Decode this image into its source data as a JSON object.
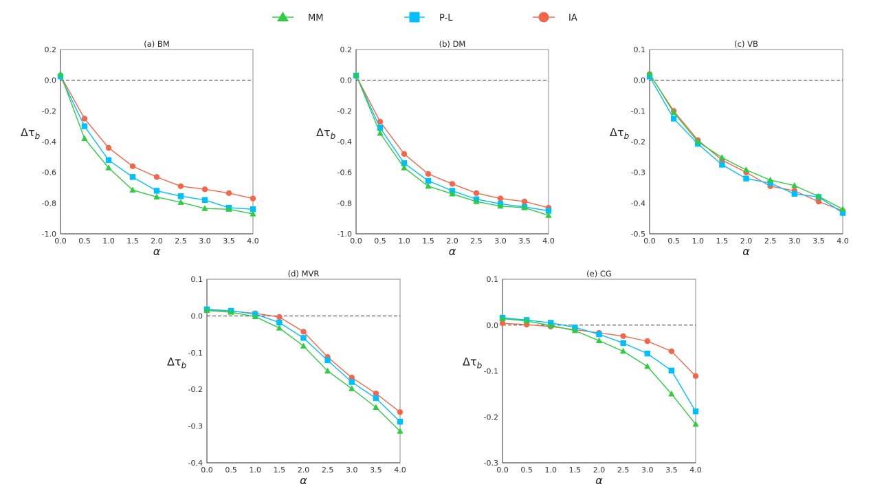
{
  "legend": {
    "position": "top-center",
    "entries": [
      {
        "name": "MM",
        "marker": "triangle",
        "color": "#2ecc40"
      },
      {
        "name": "P-L",
        "marker": "square",
        "color": "#00bfff"
      },
      {
        "name": "IA",
        "marker": "circle",
        "color": "#f4664a"
      }
    ]
  },
  "chart_data": [
    {
      "type": "line",
      "title": "(a) BM",
      "xlabel": "α",
      "ylabel": "Δτ_b",
      "x": [
        0.0,
        0.5,
        1.0,
        1.5,
        2.0,
        2.5,
        3.0,
        3.5,
        4.0
      ],
      "xlim": [
        0.0,
        4.0
      ],
      "ylim": [
        -1.0,
        0.2
      ],
      "xticks": [
        "0.0",
        "0.5",
        "1.0",
        "1.5",
        "2.0",
        "2.5",
        "3.0",
        "3.5",
        "4.0"
      ],
      "yticks": [
        0.2,
        0.0,
        -0.2,
        -0.4,
        -0.6,
        -0.8,
        -1.0
      ],
      "ytick_labels": [
        "0.2",
        "0.0",
        "-0.2",
        "-0.4",
        "-0.6",
        "-0.8",
        "-1.0"
      ],
      "reference_line": 0.0,
      "grid": false,
      "series": [
        {
          "name": "MM",
          "values": [
            0.04,
            -0.38,
            -0.57,
            -0.715,
            -0.76,
            -0.795,
            -0.835,
            -0.84,
            -0.87
          ]
        },
        {
          "name": "P-L",
          "values": [
            0.025,
            -0.3,
            -0.52,
            -0.63,
            -0.72,
            -0.755,
            -0.78,
            -0.83,
            -0.84
          ]
        },
        {
          "name": "IA",
          "values": [
            0.03,
            -0.25,
            -0.44,
            -0.56,
            -0.63,
            -0.69,
            -0.71,
            -0.735,
            -0.77
          ]
        }
      ]
    },
    {
      "type": "line",
      "title": "(b) DM",
      "xlabel": "α",
      "ylabel": "Δτ_b",
      "x": [
        0.0,
        0.5,
        1.0,
        1.5,
        2.0,
        2.5,
        3.0,
        3.5,
        4.0
      ],
      "xlim": [
        0.0,
        4.0
      ],
      "ylim": [
        -1.0,
        0.2
      ],
      "xticks": [
        "0.0",
        "0.5",
        "1.0",
        "1.5",
        "2.0",
        "2.5",
        "3.0",
        "3.5",
        "4.0"
      ],
      "yticks": [
        0.2,
        0.0,
        -0.2,
        -0.4,
        -0.6,
        -0.8,
        -1.0
      ],
      "ytick_labels": [
        "0.2",
        "0.0",
        "-0.2",
        "-0.4",
        "-0.6",
        "-0.8",
        "-1.0"
      ],
      "reference_line": 0.0,
      "grid": false,
      "series": [
        {
          "name": "MM",
          "values": [
            0.035,
            -0.345,
            -0.57,
            -0.69,
            -0.74,
            -0.79,
            -0.82,
            -0.83,
            -0.88
          ]
        },
        {
          "name": "P-L",
          "values": [
            0.03,
            -0.31,
            -0.54,
            -0.655,
            -0.72,
            -0.775,
            -0.805,
            -0.825,
            -0.85
          ]
        },
        {
          "name": "IA",
          "values": [
            0.03,
            -0.27,
            -0.48,
            -0.61,
            -0.675,
            -0.735,
            -0.77,
            -0.79,
            -0.83
          ]
        }
      ]
    },
    {
      "type": "line",
      "title": "(c) VB",
      "xlabel": "α",
      "ylabel": "Δτ_b",
      "x": [
        0.0,
        0.5,
        1.0,
        1.5,
        2.0,
        2.5,
        3.0,
        3.5,
        4.0
      ],
      "xlim": [
        0.0,
        4.0
      ],
      "ylim": [
        -0.5,
        0.1
      ],
      "xticks": [
        "0.0",
        "0.5",
        "1.0",
        "1.5",
        "2.0",
        "2.5",
        "3.0",
        "3.5",
        "4.0"
      ],
      "yticks": [
        0.1,
        0.0,
        -0.1,
        -0.2,
        -0.3,
        -0.4,
        -0.5
      ],
      "ytick_labels": [
        "0.1",
        "0.0",
        "-0.1",
        "-0.2",
        "-0.3",
        "-0.4",
        "-0.5"
      ],
      "reference_line": 0.0,
      "grid": false,
      "series": [
        {
          "name": "MM",
          "values": [
            0.022,
            -0.105,
            -0.2,
            -0.252,
            -0.292,
            -0.325,
            -0.343,
            -0.378,
            -0.42
          ]
        },
        {
          "name": "P-L",
          "values": [
            0.012,
            -0.125,
            -0.207,
            -0.275,
            -0.32,
            -0.335,
            -0.37,
            -0.38,
            -0.432
          ]
        },
        {
          "name": "IA",
          "values": [
            0.02,
            -0.1,
            -0.195,
            -0.26,
            -0.3,
            -0.345,
            -0.36,
            -0.395,
            -0.425
          ]
        }
      ]
    },
    {
      "type": "line",
      "title": "(d) MVR",
      "xlabel": "α",
      "ylabel": "Δτ_b",
      "x": [
        0.0,
        0.5,
        1.0,
        1.5,
        2.0,
        2.5,
        3.0,
        3.5,
        4.0
      ],
      "xlim": [
        0.0,
        4.0
      ],
      "ylim": [
        -0.4,
        0.1
      ],
      "xticks": [
        "0.0",
        "0.5",
        "1.0",
        "1.5",
        "2.0",
        "2.5",
        "3.0",
        "3.5",
        "4.0"
      ],
      "yticks": [
        0.1,
        0.0,
        -0.1,
        -0.2,
        -0.3,
        -0.4
      ],
      "ytick_labels": [
        "0.1",
        "0.0",
        "-0.1",
        "-0.2",
        "-0.3",
        "-0.4"
      ],
      "reference_line": 0.0,
      "grid": false,
      "series": [
        {
          "name": "MM",
          "values": [
            0.015,
            0.01,
            -0.002,
            -0.033,
            -0.082,
            -0.15,
            -0.198,
            -0.249,
            -0.314
          ]
        },
        {
          "name": "P-L",
          "values": [
            0.018,
            0.014,
            0.005,
            -0.018,
            -0.06,
            -0.121,
            -0.18,
            -0.224,
            -0.288
          ]
        },
        {
          "name": "IA",
          "values": [
            0.017,
            0.013,
            0.007,
            -0.003,
            -0.043,
            -0.112,
            -0.168,
            -0.211,
            -0.262
          ]
        }
      ]
    },
    {
      "type": "line",
      "title": "(e) CG",
      "xlabel": "α",
      "ylabel": "Δτ_b",
      "x": [
        0.0,
        0.5,
        1.0,
        1.5,
        2.0,
        2.5,
        3.0,
        3.5,
        4.0
      ],
      "xlim": [
        0.0,
        4.0
      ],
      "ylim": [
        -0.3,
        0.1
      ],
      "xticks": [
        "0.0",
        "0.5",
        "1.0",
        "1.5",
        "2.0",
        "2.5",
        "3.0",
        "3.5",
        "4.0"
      ],
      "yticks": [
        0.1,
        0.0,
        -0.1,
        -0.2,
        -0.3
      ],
      "ytick_labels": [
        "0.1",
        "0.0",
        "-0.1",
        "-0.2",
        "-0.3"
      ],
      "reference_line": 0.0,
      "grid": false,
      "series": [
        {
          "name": "MM",
          "values": [
            0.014,
            0.009,
            -0.001,
            -0.012,
            -0.034,
            -0.057,
            -0.09,
            -0.15,
            -0.216
          ]
        },
        {
          "name": "P-L",
          "values": [
            0.016,
            0.011,
            0.005,
            -0.005,
            -0.02,
            -0.039,
            -0.062,
            -0.099,
            -0.188
          ]
        },
        {
          "name": "IA",
          "values": [
            0.004,
            0.001,
            -0.003,
            -0.01,
            -0.017,
            -0.024,
            -0.035,
            -0.057,
            -0.111
          ]
        }
      ]
    }
  ]
}
